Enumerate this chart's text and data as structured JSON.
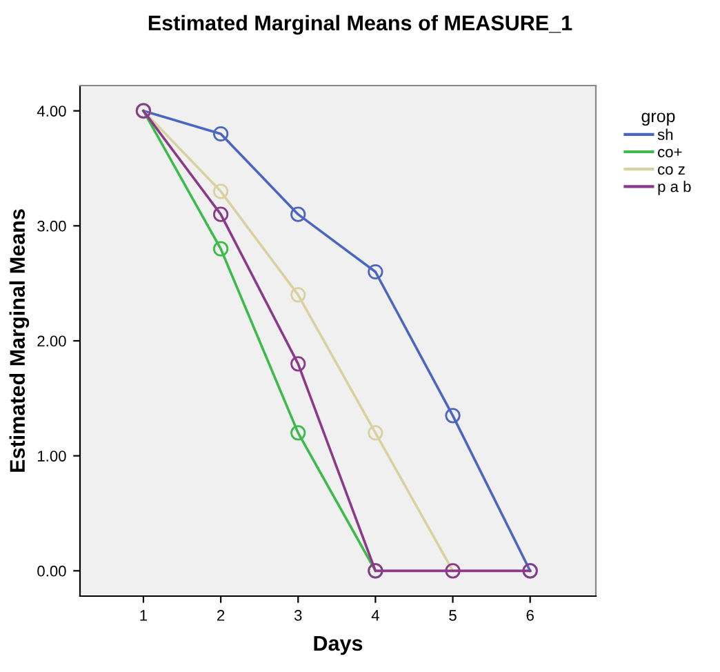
{
  "chart_data": {
    "type": "line",
    "title": "Estimated Marginal Means of MEASURE_1",
    "xlabel": "Days",
    "ylabel": "Estimated Marginal Means",
    "legend_title": "grop",
    "x": [
      1,
      2,
      3,
      4,
      5,
      6
    ],
    "series": [
      {
        "name": "sh",
        "color": "#4a66c0",
        "values": [
          4,
          3.8,
          3.1,
          2.6,
          1.35,
          0
        ]
      },
      {
        "name": "co+",
        "color": "#3dbb4a",
        "values": [
          4,
          2.8,
          1.2,
          0,
          null,
          null
        ]
      },
      {
        "name": "co z",
        "color": "#d8d2a0",
        "values": [
          4,
          3.3,
          2.4,
          1.2,
          0,
          null
        ]
      },
      {
        "name": "p a b",
        "color": "#8a3a88",
        "values": [
          4,
          3.1,
          1.8,
          0,
          0,
          0
        ]
      }
    ],
    "xlim": [
      0.18,
      6.85
    ],
    "ylim": [
      -0.22,
      4.22
    ],
    "xticks": [
      1,
      2,
      3,
      4,
      5,
      6
    ],
    "yticks": [
      {
        "value": 0,
        "label": "0.00"
      },
      {
        "value": 1,
        "label": "1.00"
      },
      {
        "value": 2,
        "label": "2.00"
      },
      {
        "value": 3,
        "label": "3.00"
      },
      {
        "value": 4,
        "label": "4.00"
      }
    ],
    "marker": "circle",
    "grid": false,
    "legend": "right"
  }
}
